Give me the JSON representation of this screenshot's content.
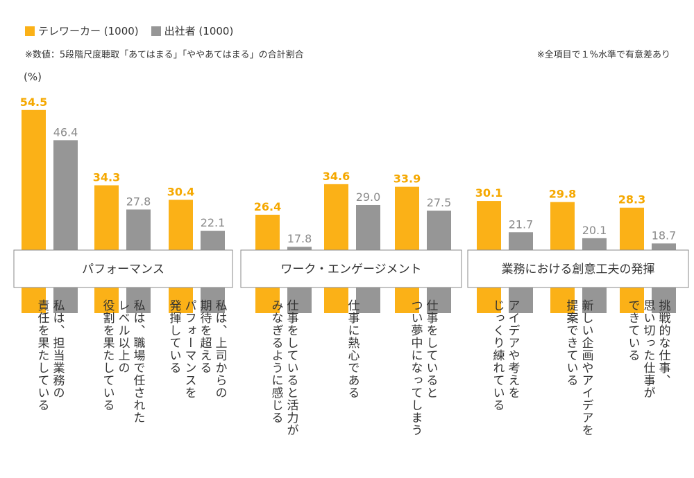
{
  "legend": {
    "tele_label": "テレワーカー (1000)",
    "office_label": "出社者 (1000)"
  },
  "notes": {
    "left": "※数値：5段階尺度聴取「あてはまる」「ややあてはまる」の合計割合",
    "right": "※全項目で１%水準で有意差あり"
  },
  "unit": "(%)",
  "colors": {
    "tele": "#FBB117",
    "office": "#969696",
    "tele_text": "#F5A800",
    "office_text": "#8A8A8A"
  },
  "chart_data": {
    "type": "bar",
    "unit": "%",
    "series": [
      {
        "name": "テレワーカー (1000)",
        "values": [
          54.5,
          34.3,
          30.4,
          26.4,
          34.6,
          33.9,
          30.1,
          29.8,
          28.3
        ]
      },
      {
        "name": "出社者 (1000)",
        "values": [
          46.4,
          27.8,
          22.1,
          17.8,
          29.0,
          27.5,
          21.7,
          20.1,
          18.7
        ]
      }
    ],
    "value_labels": {
      "tele": [
        "54.5",
        "34.3",
        "30.4",
        "26.4",
        "34.6",
        "33.9",
        "30.1",
        "29.8",
        "28.3"
      ],
      "office": [
        "46.4",
        "27.8",
        "22.1",
        "17.8",
        "29.0",
        "27.5",
        "21.7",
        "20.1",
        "18.7"
      ]
    },
    "groups": [
      {
        "label": "パフォーマンス",
        "items": [
          0,
          1,
          2
        ]
      },
      {
        "label": "ワーク・エンゲージメント",
        "items": [
          3,
          4,
          5
        ]
      },
      {
        "label": "業務における創意工夫の発揮",
        "items": [
          6,
          7,
          8
        ]
      }
    ],
    "categories": [
      "私は、担当業務の\n責任を果たしている",
      "私は、職場で任された\nレベル以上の\n役割を果たしている",
      "私は、上司からの\n期待を超える\nパフォーマンスを\n発揮している",
      "仕事をしていると活力が\nみなぎるように感じる",
      "仕事に熱心である",
      "仕事をしていると\nつい夢中になってしまう",
      "アイデアや考えを\nじっくり練れている",
      "新しい企画やアイデアを\n提案できている",
      "挑戦的な仕事、\n思い切った仕事が\nできている"
    ]
  }
}
